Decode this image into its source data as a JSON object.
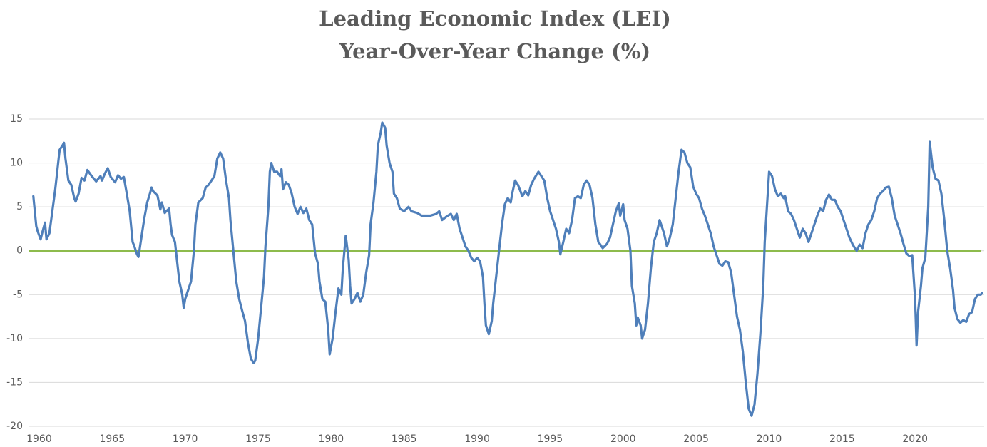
{
  "chart_data": {
    "type": "line",
    "title": "Leading Economic Index (LEI)",
    "subtitle": "Year-Over-Year Change (%)",
    "x": [
      1959.6,
      1959.8,
      1959.9,
      1960.1,
      1960.2,
      1960.4,
      1960.5,
      1960.7,
      1960.9,
      1961.1,
      1961.2,
      1961.4,
      1961.6,
      1961.7,
      1961.8,
      1962.0,
      1962.2,
      1962.4,
      1962.5,
      1962.7,
      1962.9,
      1963.1,
      1963.3,
      1963.6,
      1963.9,
      1964.2,
      1964.3,
      1964.5,
      1964.7,
      1964.9,
      1965.2,
      1965.4,
      1965.6,
      1965.8,
      1966.0,
      1966.2,
      1966.4,
      1966.5,
      1966.7,
      1966.8,
      1967.0,
      1967.2,
      1967.4,
      1967.6,
      1967.7,
      1967.8,
      1968.1,
      1968.3,
      1968.4,
      1968.6,
      1968.7,
      1968.9,
      1969.0,
      1969.1,
      1969.3,
      1969.4,
      1969.6,
      1969.8,
      1969.9,
      1970.0,
      1970.2,
      1970.4,
      1970.6,
      1970.7,
      1970.9,
      1971.2,
      1971.4,
      1971.6,
      1971.8,
      1972.0,
      1972.2,
      1972.4,
      1972.6,
      1972.8,
      1973.0,
      1973.1,
      1973.3,
      1973.5,
      1973.7,
      1973.9,
      1974.1,
      1974.3,
      1974.5,
      1974.7,
      1974.8,
      1975.0,
      1975.2,
      1975.4,
      1975.5,
      1975.7,
      1975.8,
      1975.9,
      1976.1,
      1976.3,
      1976.5,
      1976.6,
      1976.7,
      1976.9,
      1977.1,
      1977.3,
      1977.5,
      1977.7,
      1977.9,
      1978.1,
      1978.3,
      1978.5,
      1978.7,
      1978.9,
      1979.1,
      1979.2,
      1979.4,
      1979.6,
      1979.8,
      1979.9,
      1980.1,
      1980.3,
      1980.5,
      1980.7,
      1980.8,
      1981.0,
      1981.2,
      1981.3,
      1981.4,
      1981.6,
      1981.8,
      1982.0,
      1982.2,
      1982.4,
      1982.6,
      1982.7,
      1982.9,
      1983.1,
      1983.2,
      1983.4,
      1983.5,
      1983.7,
      1983.8,
      1984.0,
      1984.2,
      1984.3,
      1984.5,
      1984.7,
      1985.0,
      1985.3,
      1985.5,
      1985.9,
      1986.2,
      1986.5,
      1986.8,
      1987.2,
      1987.4,
      1987.6,
      1987.9,
      1988.2,
      1988.4,
      1988.6,
      1988.8,
      1989.0,
      1989.2,
      1989.4,
      1989.6,
      1989.8,
      1990.0,
      1990.2,
      1990.4,
      1990.5,
      1990.6,
      1990.8,
      1991.0,
      1991.1,
      1991.3,
      1991.5,
      1991.7,
      1991.9,
      1992.1,
      1992.3,
      1992.4,
      1992.6,
      1992.8,
      1993.1,
      1993.3,
      1993.5,
      1993.7,
      1993.9,
      1994.2,
      1994.4,
      1994.6,
      1994.8,
      1995.0,
      1995.2,
      1995.4,
      1995.6,
      1995.7,
      1995.9,
      1996.1,
      1996.3,
      1996.5,
      1996.7,
      1996.9,
      1997.1,
      1997.3,
      1997.5,
      1997.7,
      1997.9,
      1998.1,
      1998.3,
      1998.4,
      1998.6,
      1998.9,
      1999.1,
      1999.3,
      1999.5,
      1999.7,
      1999.8,
      2000.0,
      2000.1,
      2000.3,
      2000.5,
      2000.6,
      2000.8,
      2000.9,
      2001.0,
      2001.2,
      2001.3,
      2001.5,
      2001.7,
      2001.9,
      2002.1,
      2002.3,
      2002.5,
      2002.6,
      2002.8,
      2003.0,
      2003.2,
      2003.4,
      2003.6,
      2003.8,
      2004.0,
      2004.2,
      2004.4,
      2004.6,
      2004.8,
      2005.0,
      2005.2,
      2005.4,
      2005.6,
      2005.8,
      2006.0,
      2006.2,
      2006.4,
      2006.6,
      2006.8,
      2007.0,
      2007.2,
      2007.4,
      2007.6,
      2007.8,
      2008.0,
      2008.2,
      2008.4,
      2008.6,
      2008.8,
      2009.0,
      2009.2,
      2009.4,
      2009.6,
      2009.7,
      2010.0,
      2010.2,
      2010.4,
      2010.6,
      2010.8,
      2011.0,
      2011.1,
      2011.3,
      2011.5,
      2011.7,
      2011.9,
      2012.1,
      2012.3,
      2012.5,
      2012.7,
      2012.9,
      2013.1,
      2013.3,
      2013.5,
      2013.7,
      2013.9,
      2014.1,
      2014.3,
      2014.5,
      2014.7,
      2014.9,
      2015.1,
      2015.3,
      2015.5,
      2015.7,
      2015.8,
      2016.0,
      2016.2,
      2016.4,
      2016.6,
      2016.8,
      2017.0,
      2017.2,
      2017.4,
      2017.6,
      2017.8,
      2018.0,
      2018.2,
      2018.4,
      2018.6,
      2018.8,
      2019.0,
      2019.2,
      2019.4,
      2019.6,
      2019.8,
      2020.0,
      2020.1,
      2020.2,
      2020.4,
      2020.5,
      2020.7,
      2020.9,
      2021.0,
      2021.2,
      2021.4,
      2021.6,
      2021.8,
      2022.0,
      2022.2,
      2022.4,
      2022.6,
      2022.7,
      2022.9,
      2023.1,
      2023.3,
      2023.5,
      2023.7,
      2023.9,
      2024.1,
      2024.3,
      2024.5,
      2024.6
    ],
    "series": [
      {
        "color": "#4f7fba",
        "values": [
          6.2,
          2.8,
          2.2,
          1.3,
          2.0,
          3.2,
          1.3,
          2.0,
          4.5,
          7.0,
          8.5,
          11.5,
          12.0,
          12.3,
          10.5,
          8.0,
          7.5,
          6.0,
          5.6,
          6.5,
          8.3,
          8.0,
          9.2,
          8.5,
          7.9,
          8.5,
          8.0,
          8.8,
          9.4,
          8.4,
          7.8,
          8.6,
          8.2,
          8.4,
          6.5,
          4.5,
          1.0,
          0.6,
          -0.4,
          -0.7,
          1.5,
          3.7,
          5.5,
          6.6,
          7.2,
          6.8,
          6.3,
          4.7,
          5.5,
          4.3,
          4.5,
          4.8,
          3.0,
          1.8,
          1.0,
          -0.5,
          -3.5,
          -5.0,
          -6.5,
          -5.5,
          -4.5,
          -3.5,
          0.0,
          3.0,
          5.5,
          6.0,
          7.2,
          7.5,
          8.0,
          8.5,
          10.5,
          11.2,
          10.5,
          8.0,
          6.0,
          3.5,
          0.0,
          -3.5,
          -5.5,
          -6.8,
          -8.0,
          -10.5,
          -12.3,
          -12.8,
          -12.5,
          -10.0,
          -6.5,
          -3.0,
          0.5,
          5.0,
          9.0,
          10.0,
          9.0,
          9.0,
          8.5,
          9.3,
          7.0,
          7.8,
          7.5,
          6.5,
          5.0,
          4.2,
          5.0,
          4.3,
          4.8,
          3.5,
          3.0,
          -0.3,
          -1.5,
          -3.5,
          -5.5,
          -5.8,
          -9.0,
          -11.8,
          -10.0,
          -7.0,
          -4.3,
          -5.0,
          -2.0,
          1.7,
          -1.0,
          -4.0,
          -6.0,
          -5.5,
          -4.8,
          -5.8,
          -5.0,
          -2.5,
          -0.5,
          3.0,
          5.5,
          9.0,
          12.0,
          13.5,
          14.6,
          14.0,
          12.0,
          10.0,
          9.0,
          6.5,
          6.0,
          4.8,
          4.5,
          5.0,
          4.5,
          4.3,
          4.0,
          4.0,
          4.0,
          4.2,
          4.5,
          3.5,
          3.9,
          4.2,
          3.5,
          4.2,
          2.5,
          1.5,
          0.5,
          0.0,
          -0.8,
          -1.2,
          -0.8,
          -1.2,
          -3.0,
          -6.0,
          -8.5,
          -9.5,
          -8.0,
          -6.0,
          -3.0,
          0.0,
          3.0,
          5.3,
          6.0,
          5.5,
          6.5,
          8.0,
          7.5,
          6.2,
          6.8,
          6.3,
          7.5,
          8.2,
          9.0,
          8.5,
          8.0,
          6.0,
          4.5,
          3.5,
          2.5,
          1.0,
          -0.4,
          1.0,
          2.5,
          2.0,
          3.5,
          6.0,
          6.2,
          6.0,
          7.5,
          8.0,
          7.5,
          6.0,
          3.0,
          1.0,
          0.8,
          0.3,
          0.8,
          1.5,
          3.0,
          4.5,
          5.4,
          4.0,
          5.3,
          3.5,
          2.5,
          0.0,
          -4.0,
          -6.0,
          -8.5,
          -7.6,
          -8.5,
          -10.0,
          -9.0,
          -6.0,
          -2.0,
          1.0,
          2.0,
          3.5,
          3.0,
          2.0,
          0.5,
          1.5,
          3.0,
          6.0,
          9.0,
          11.5,
          11.2,
          10.0,
          9.5,
          7.3,
          6.5,
          6.0,
          4.8,
          4.0,
          3.0,
          2.0,
          0.5,
          -0.5,
          -1.5,
          -1.7,
          -1.2,
          -1.3,
          -2.5,
          -5.0,
          -7.5,
          -9.0,
          -11.5,
          -15.0,
          -18.0,
          -18.8,
          -17.5,
          -14.0,
          -9.5,
          -4.0,
          1.0,
          9.0,
          8.5,
          7.0,
          6.2,
          6.5,
          6.0,
          6.2,
          4.5,
          4.2,
          3.5,
          2.5,
          1.5,
          2.5,
          2.0,
          1.0,
          2.0,
          3.0,
          4.0,
          4.8,
          4.5,
          5.8,
          6.4,
          5.8,
          5.8,
          5.0,
          4.5,
          3.5,
          2.5,
          1.5,
          0.8,
          0.5,
          0.0,
          0.7,
          0.3,
          2.0,
          3.0,
          3.5,
          4.5,
          6.0,
          6.5,
          6.8,
          7.2,
          7.3,
          6.0,
          4.0,
          3.0,
          2.0,
          0.8,
          -0.3,
          -0.6,
          -0.5,
          -5.5,
          -10.8,
          -7.0,
          -4.0,
          -2.0,
          -0.8,
          5.0,
          12.4,
          9.5,
          8.2,
          8.0,
          6.5,
          3.5,
          0.0,
          -2.0,
          -4.5,
          -6.5,
          -7.8,
          -8.2,
          -7.9,
          -8.1,
          -7.2,
          -7.0,
          -5.5,
          -5.0,
          -5.0,
          -4.8
        ]
      }
    ],
    "xlim": [
      1959.27,
      2024.73
    ],
    "xticks": [
      1960,
      1965,
      1970,
      1975,
      1980,
      1985,
      1990,
      1995,
      2000,
      2005,
      2010,
      2015,
      2020
    ],
    "ylim": [
      -20,
      15
    ],
    "yticks": [
      -20,
      -15,
      -10,
      -5,
      0,
      5,
      10,
      15
    ],
    "grid": true,
    "reference_line": {
      "value": 0,
      "color": "#8dbb4c"
    }
  }
}
